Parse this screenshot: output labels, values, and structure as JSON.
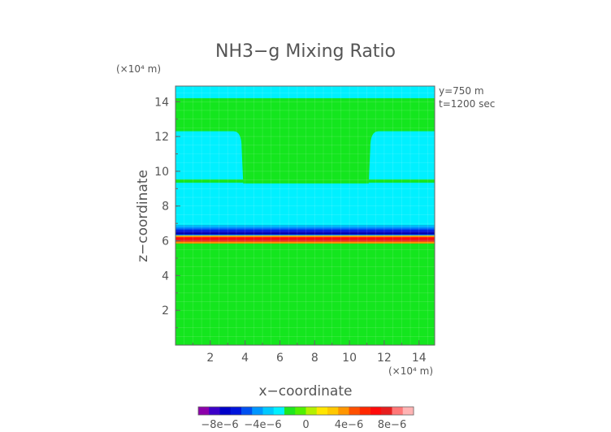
{
  "chart_data": {
    "type": "heatmap",
    "title": "NH3−g Mixing Ratio",
    "xlabel": "x−coordinate",
    "ylabel": "z−coordinate",
    "x_unit": "(×10⁴ m)",
    "y_unit": "(×10⁴ m)",
    "annotations": [
      "y=750  m",
      "t=1200  sec"
    ],
    "xlim": [
      0,
      14.9
    ],
    "ylim": [
      0,
      14.9
    ],
    "x_ticks": [
      2,
      4,
      6,
      8,
      10,
      12,
      14
    ],
    "y_ticks": [
      2,
      4,
      6,
      8,
      10,
      12,
      14
    ],
    "grid": true,
    "colorbar": {
      "min": -1e-05,
      "max": 1e-05,
      "tick_values": [
        -8e-06,
        -4e-06,
        0,
        4e-06,
        8e-06
      ],
      "tick_labels": [
        "−8e−6",
        "−4e−6",
        "0",
        "4e−6",
        "8e−6"
      ],
      "colors": [
        "#8c00aa",
        "#3c00c8",
        "#0000c8",
        "#0014dc",
        "#0050f0",
        "#0096ff",
        "#00c8ff",
        "#00f0ff",
        "#1ee61e",
        "#50f000",
        "#b4f000",
        "#ffe600",
        "#ffc800",
        "#ff9600",
        "#ff5000",
        "#ff2800",
        "#ff0a0a",
        "#e61e1e",
        "#ff7878",
        "#ffb4b4"
      ]
    },
    "regions": [
      {
        "label": "background",
        "value": 1e-06,
        "color": "#14e61e",
        "x": [
          0,
          14.9
        ],
        "z": [
          0,
          14.9
        ]
      },
      {
        "label": "top layer",
        "value": -1e-06,
        "color": "#00f0ff",
        "z": [
          14.2,
          14.9
        ]
      },
      {
        "label": "mid layer",
        "value": -1e-06,
        "color": "#00f0ff",
        "z": [
          6.9,
          9.3
        ]
      },
      {
        "label": "left lobe",
        "value": -1e-06,
        "color": "#00f0ff",
        "x": [
          0,
          3.8
        ],
        "z": [
          9.3,
          12.3
        ]
      },
      {
        "label": "right lobe",
        "value": -1e-06,
        "color": "#00f0ff",
        "x": [
          11.2,
          14.9
        ],
        "z": [
          9.3,
          12.3
        ]
      },
      {
        "label": "negative band",
        "value": -7e-06,
        "color": "#0000c8",
        "z": [
          6.3,
          6.9
        ]
      },
      {
        "label": "positive band",
        "value": 7e-06,
        "color": "#ff2800",
        "z": [
          5.85,
          6.3
        ]
      }
    ]
  }
}
